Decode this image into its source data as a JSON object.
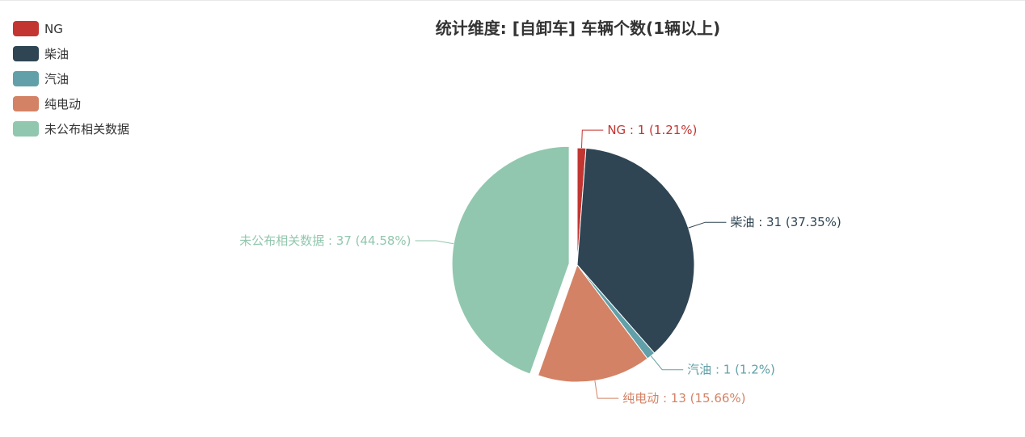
{
  "chart_data": {
    "type": "pie",
    "title": "统计维度: [自卸车] 车辆个数(1辆以上)",
    "legend_position": "top-left",
    "slices": [
      {
        "name": "NG",
        "value": 1,
        "percent": "1.21%",
        "color": "#c23531",
        "label": "NG : 1 (1.21%)"
      },
      {
        "name": "柴油",
        "value": 31,
        "percent": "37.35%",
        "color": "#2f4554",
        "label": "柴油 : 31 (37.35%)"
      },
      {
        "name": "汽油",
        "value": 1,
        "percent": "1.2%",
        "color": "#61a0a8",
        "label": "汽油 : 1 (1.2%)"
      },
      {
        "name": "纯电动",
        "value": 13,
        "percent": "15.66%",
        "color": "#d48265",
        "label": "纯电动 : 13 (15.66%)"
      },
      {
        "name": "未公布相关数据",
        "value": 37,
        "percent": "44.58%",
        "color": "#91c7ae",
        "label": "未公布相关数据 : 37 (44.58%)"
      }
    ]
  }
}
